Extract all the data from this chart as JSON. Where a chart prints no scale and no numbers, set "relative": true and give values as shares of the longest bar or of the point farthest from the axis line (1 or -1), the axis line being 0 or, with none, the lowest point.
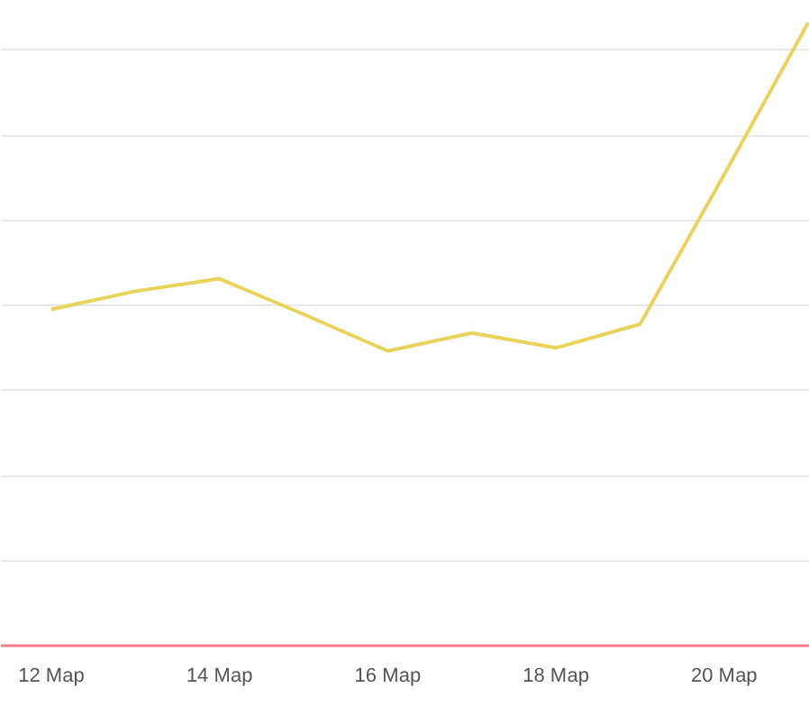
{
  "chart_data": {
    "type": "line",
    "relative": true,
    "grid": "y",
    "line_style": "solid",
    "categories": [
      "12 Мар",
      null,
      "14 Мар",
      null,
      "16 Мар",
      null,
      "18 Мар",
      null,
      "20 Мар",
      null
    ],
    "series": [
      {
        "color": "#e8d45a",
        "values": [
          0.54,
          0.569,
          0.589,
          0.532,
          0.473,
          0.502,
          0.478,
          0.516,
          0.756,
          1.0
        ]
      }
    ]
  }
}
